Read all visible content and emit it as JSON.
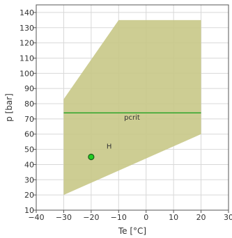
{
  "chart_data": {
    "type": "area",
    "xlabel": "Te [°C]",
    "ylabel": "p [bar]",
    "xlim": [
      -40,
      30
    ],
    "ylim": [
      10,
      145
    ],
    "x_ticks": [
      -40,
      -30,
      -20,
      -10,
      0,
      10,
      20,
      30
    ],
    "y_ticks": [
      10,
      20,
      30,
      40,
      50,
      60,
      70,
      80,
      90,
      100,
      110,
      120,
      130,
      140
    ],
    "grid": true,
    "envelope": {
      "points": [
        {
          "x": -30,
          "y": 20
        },
        {
          "x": -30,
          "y": 83
        },
        {
          "x": -10,
          "y": 135
        },
        {
          "x": 20,
          "y": 135
        },
        {
          "x": 20,
          "y": 60
        }
      ],
      "color": "#c8c887"
    },
    "pcrit_line": {
      "label": "pcrit",
      "y": 74,
      "x_range": [
        -30,
        20
      ],
      "color": "#3aa832"
    },
    "point": {
      "label": "H",
      "x": -20,
      "y": 45,
      "color": "#22cc22"
    }
  }
}
